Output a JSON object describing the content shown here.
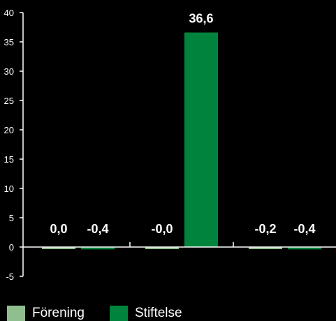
{
  "chart_data": {
    "type": "bar",
    "categories": [
      "",
      "",
      ""
    ],
    "ylim": [
      -5,
      40
    ],
    "yticks": [
      -5,
      0,
      5,
      10,
      15,
      20,
      25,
      30,
      35,
      40
    ],
    "grid": false,
    "legend_position": "bottom-left",
    "series": [
      {
        "name": "Förening",
        "color": "#8fbf8f",
        "values": [
          0.0,
          -0.0,
          -0.2
        ],
        "labels": [
          "0,0",
          "-0,0",
          "-0,2"
        ]
      },
      {
        "name": "Stiftelse",
        "color": "#00843d",
        "values": [
          -0.4,
          36.6,
          -0.4
        ],
        "labels": [
          "-0,4",
          "36,6",
          "-0,4"
        ]
      }
    ]
  }
}
